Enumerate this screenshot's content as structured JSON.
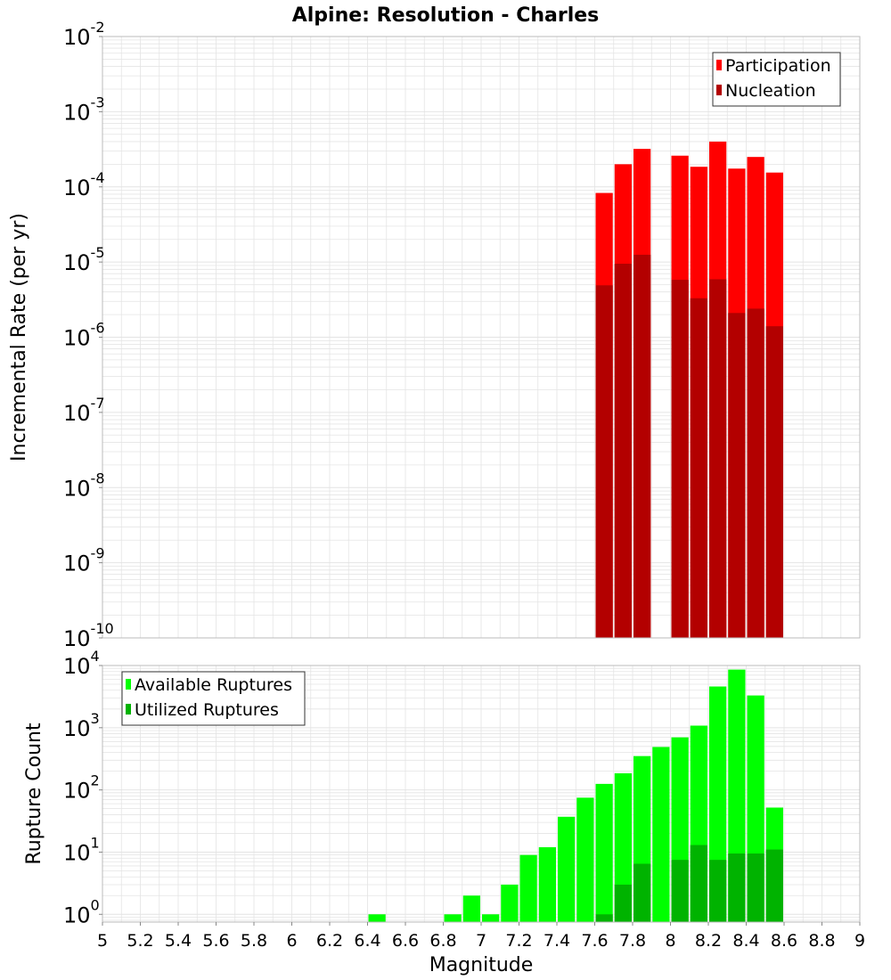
{
  "title": "Alpine: Resolution - Charles",
  "xlabel": "Magnitude",
  "colors": {
    "participation": "#ff0000",
    "nucleation": "#b30000",
    "available": "#00ff00",
    "utilized": "#00b300",
    "grid": "#e4e4e4",
    "axis": "#bbbbbb"
  },
  "chart_data": [
    {
      "type": "bar",
      "panel": "top",
      "ylabel": "Incremental Rate (per yr)",
      "yscale": "log",
      "ylim": [
        1e-10,
        0.01
      ],
      "xlim": [
        5,
        9
      ],
      "grid": true,
      "legend_position": "top-right",
      "y_tick_labels": [
        {
          "base": "10",
          "exp": "-10"
        },
        {
          "base": "10",
          "exp": "-9"
        },
        {
          "base": "10",
          "exp": "-8"
        },
        {
          "base": "10",
          "exp": "-7"
        },
        {
          "base": "10",
          "exp": "-6"
        },
        {
          "base": "10",
          "exp": "-5"
        },
        {
          "base": "10",
          "exp": "-4"
        },
        {
          "base": "10",
          "exp": "-3"
        },
        {
          "base": "10",
          "exp": "-2"
        }
      ],
      "bar_width": 0.1,
      "series": [
        {
          "name": "Participation",
          "color": "#ff0000",
          "x": [
            7.65,
            7.75,
            7.85,
            8.05,
            8.15,
            8.25,
            8.35,
            8.45,
            8.55
          ],
          "values": [
            8.3e-05,
            0.0002,
            0.00032,
            0.00026,
            0.000185,
            0.0004,
            0.000175,
            0.00025,
            0.000155
          ]
        },
        {
          "name": "Nucleation",
          "color": "#b30000",
          "x": [
            7.65,
            7.75,
            7.85,
            8.05,
            8.15,
            8.25,
            8.35,
            8.45,
            8.55
          ],
          "values": [
            4.9e-06,
            9.5e-06,
            1.25e-05,
            5.8e-06,
            3.3e-06,
            5.9e-06,
            2.1e-06,
            2.4e-06,
            1.4e-06
          ]
        }
      ]
    },
    {
      "type": "bar",
      "panel": "bottom",
      "ylabel": "Rupture Count",
      "yscale": "log",
      "ylim": [
        0.75,
        10000
      ],
      "xlim": [
        5,
        9
      ],
      "grid": true,
      "legend_position": "top-left",
      "y_tick_labels": [
        {
          "base": "10",
          "exp": "0"
        },
        {
          "base": "10",
          "exp": "1"
        },
        {
          "base": "10",
          "exp": "2"
        },
        {
          "base": "10",
          "exp": "3"
        },
        {
          "base": "10",
          "exp": "4"
        }
      ],
      "x_tick_labels": [
        "5",
        "5.2",
        "5.4",
        "5.6",
        "5.8",
        "6",
        "6.2",
        "6.4",
        "6.6",
        "6.8",
        "7",
        "7.2",
        "7.4",
        "7.6",
        "7.8",
        "8",
        "8.2",
        "8.4",
        "8.6",
        "8.8",
        "9"
      ],
      "bar_width": 0.1,
      "series": [
        {
          "name": "Available Ruptures",
          "color": "#00ff00",
          "x": [
            6.45,
            6.85,
            6.95,
            7.05,
            7.15,
            7.25,
            7.35,
            7.45,
            7.55,
            7.65,
            7.75,
            7.85,
            7.95,
            8.05,
            8.15,
            8.25,
            8.35,
            8.45,
            8.55
          ],
          "values": [
            1,
            1,
            2,
            1,
            3,
            9,
            12,
            37,
            75,
            125,
            185,
            350,
            490,
            700,
            1080,
            4600,
            8600,
            3300,
            52
          ]
        },
        {
          "name": "Utilized Ruptures",
          "color": "#00b300",
          "x": [
            7.65,
            7.75,
            7.85,
            8.05,
            8.15,
            8.25,
            8.35,
            8.45,
            8.55
          ],
          "values": [
            1,
            3,
            6.5,
            7.5,
            13,
            7.5,
            9.5,
            9.5,
            11
          ]
        }
      ]
    }
  ]
}
